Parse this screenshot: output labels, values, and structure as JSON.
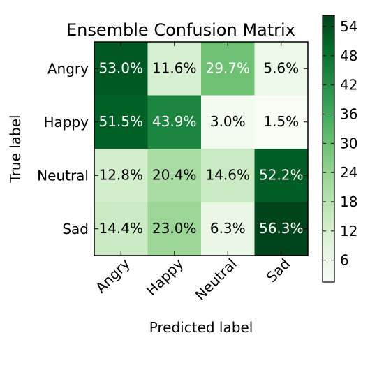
{
  "chart_data": {
    "type": "heatmap",
    "title": "Ensemble Confusion Matrix",
    "xlabel": "Predicted label",
    "ylabel": "True label",
    "x_categories": [
      "Angry",
      "Happy",
      "Neutral",
      "Sad"
    ],
    "y_categories": [
      "Angry",
      "Happy",
      "Neutral",
      "Sad"
    ],
    "values": [
      [
        53.0,
        11.6,
        29.7,
        5.6
      ],
      [
        51.5,
        43.9,
        3.0,
        1.5
      ],
      [
        12.8,
        20.4,
        14.6,
        52.2
      ],
      [
        14.4,
        23.0,
        6.3,
        56.3
      ]
    ],
    "cell_labels": [
      [
        "53.0%",
        "11.6%",
        "29.7%",
        "5.6%"
      ],
      [
        "51.5%",
        "43.9%",
        "3.0%",
        "1.5%"
      ],
      [
        "12.8%",
        "20.4%",
        "14.6%",
        "52.2%"
      ],
      [
        "14.4%",
        "23.0%",
        "6.3%",
        "56.3%"
      ]
    ],
    "colormap": "Greens",
    "colorbar": {
      "range": [
        1.5,
        56.3
      ],
      "ticks": [
        6,
        12,
        18,
        24,
        30,
        36,
        42,
        48,
        54
      ]
    },
    "text_colors": {
      "light": "#ffffff",
      "dark": "#000000"
    }
  }
}
